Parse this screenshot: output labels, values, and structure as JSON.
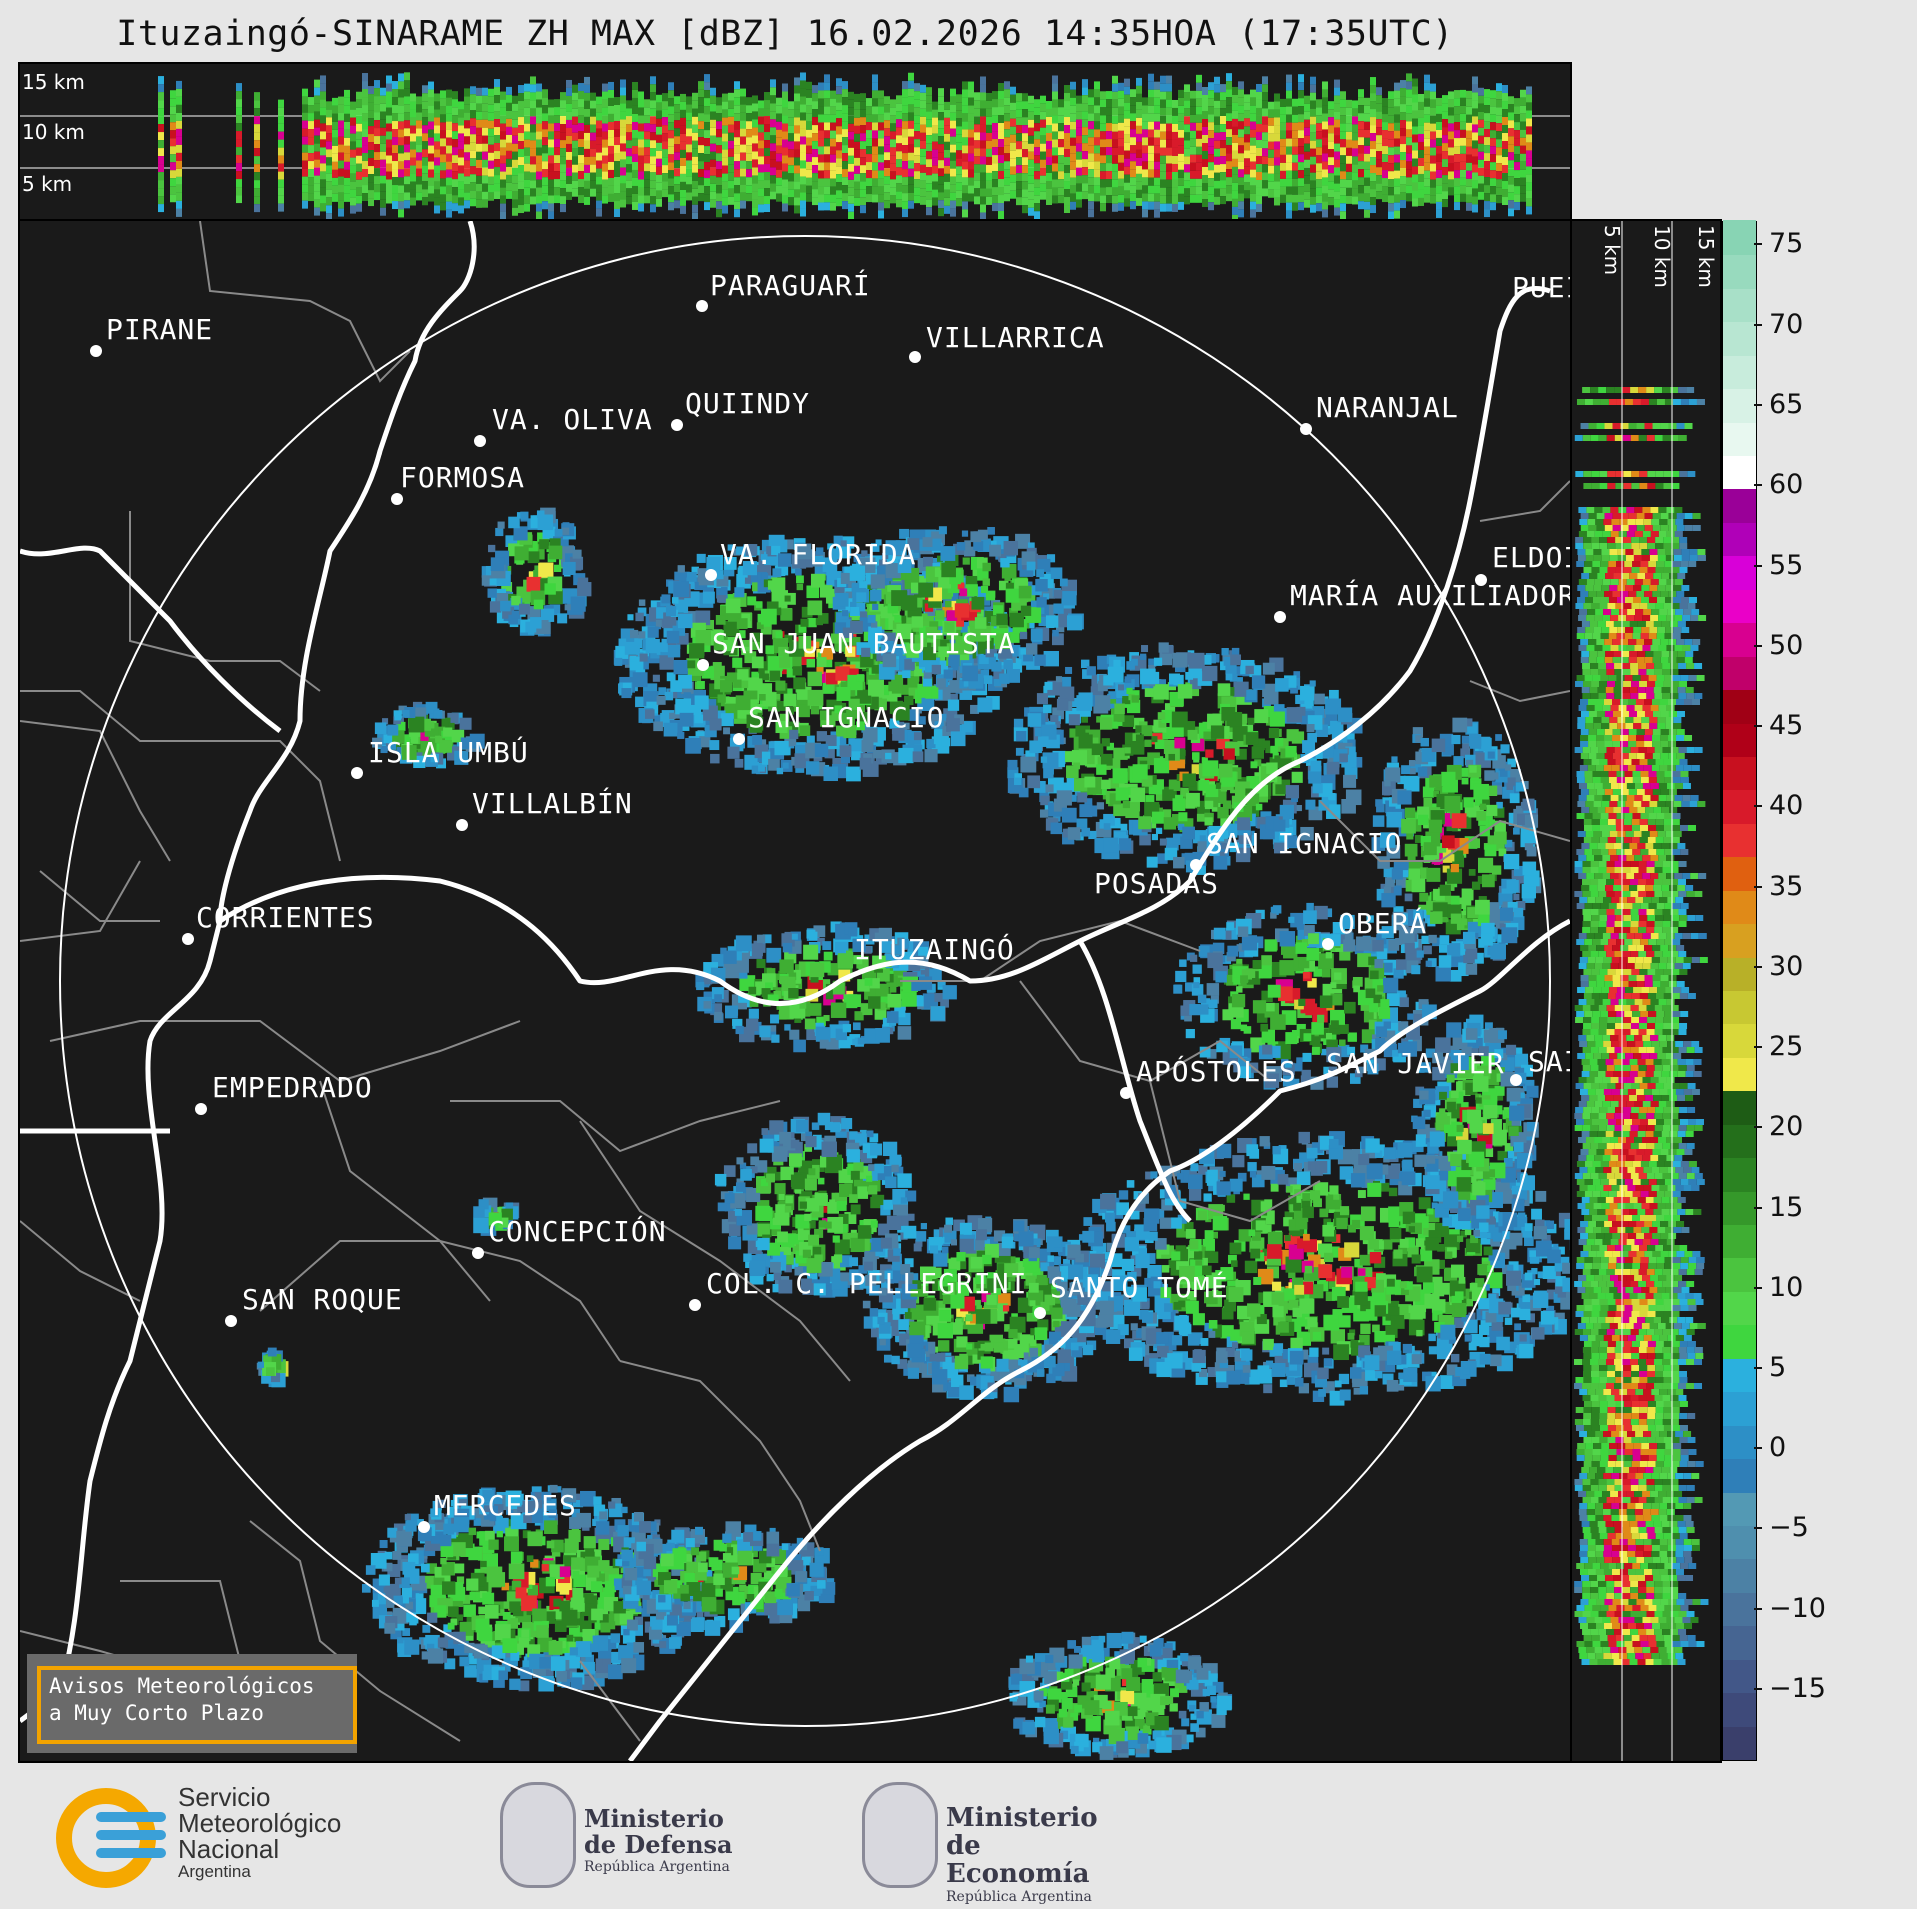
{
  "title": "Ituzaingó-SINARAME ZH MAX [dBZ] 16.02.2026 14:35HOA (17:35UTC)",
  "top_strip": {
    "labels": [
      "15 km",
      "10 km",
      "5 km"
    ]
  },
  "side_strip": {
    "labels": [
      "5 km",
      "10 km",
      "15 km"
    ]
  },
  "colorbar": {
    "ticks": [
      "75",
      "70",
      "65",
      "60",
      "55",
      "50",
      "45",
      "40",
      "35",
      "30",
      "25",
      "20",
      "15",
      "10",
      "5",
      "0",
      "−5",
      "−10",
      "−15"
    ]
  },
  "cities": [
    {
      "name": "PARAGUARÍ"
    },
    {
      "name": "VILLARRICA"
    },
    {
      "name": "PUEI"
    },
    {
      "name": "PIRANE"
    },
    {
      "name": "QUIINDY"
    },
    {
      "name": "VA. OLIVA"
    },
    {
      "name": "NARANJAL"
    },
    {
      "name": "FORMOSA"
    },
    {
      "name": "VA. FLORIDA"
    },
    {
      "name": "ELDOI"
    },
    {
      "name": "MARÍA AUXILIADOR"
    },
    {
      "name": "SAN JUAN BAUTISTA"
    },
    {
      "name": "SAN IGNACIO"
    },
    {
      "name": "ISLA UMBÚ"
    },
    {
      "name": "VILLALBÍN"
    },
    {
      "name": "SAN IGNACIO"
    },
    {
      "name": "POSADAS"
    },
    {
      "name": "CORRIENTES"
    },
    {
      "name": "OBERÁ"
    },
    {
      "name": "ITUZAINGÓ"
    },
    {
      "name": "APÓSTOLES"
    },
    {
      "name": "SAN JAVIER"
    },
    {
      "name": "SAI"
    },
    {
      "name": "EMPEDRADO"
    },
    {
      "name": "CONCEPCIÓN"
    },
    {
      "name": "COL. C. PELLEGRINI"
    },
    {
      "name": "SANTO TOMÉ"
    },
    {
      "name": "SAN ROQUE"
    },
    {
      "name": "MERCEDES"
    }
  ],
  "warning_box": {
    "line1": "Avisos Meteorológicos",
    "line2": "a Muy Corto Plazo"
  },
  "logos": {
    "smn": {
      "line1": "Servicio",
      "line2": "Meteorológico",
      "line3": "Nacional",
      "line4": "Argentina"
    },
    "defensa": {
      "line1": "Ministerio",
      "line2": "de Defensa",
      "line3": "República Argentina"
    },
    "economia": {
      "line1": "Ministerio",
      "line2": "de Economía",
      "line3": "República Argentina"
    }
  },
  "colors": {
    "background": "#1a1a1a",
    "page": "#e6e6e6",
    "warning_border": "#f2a300"
  }
}
